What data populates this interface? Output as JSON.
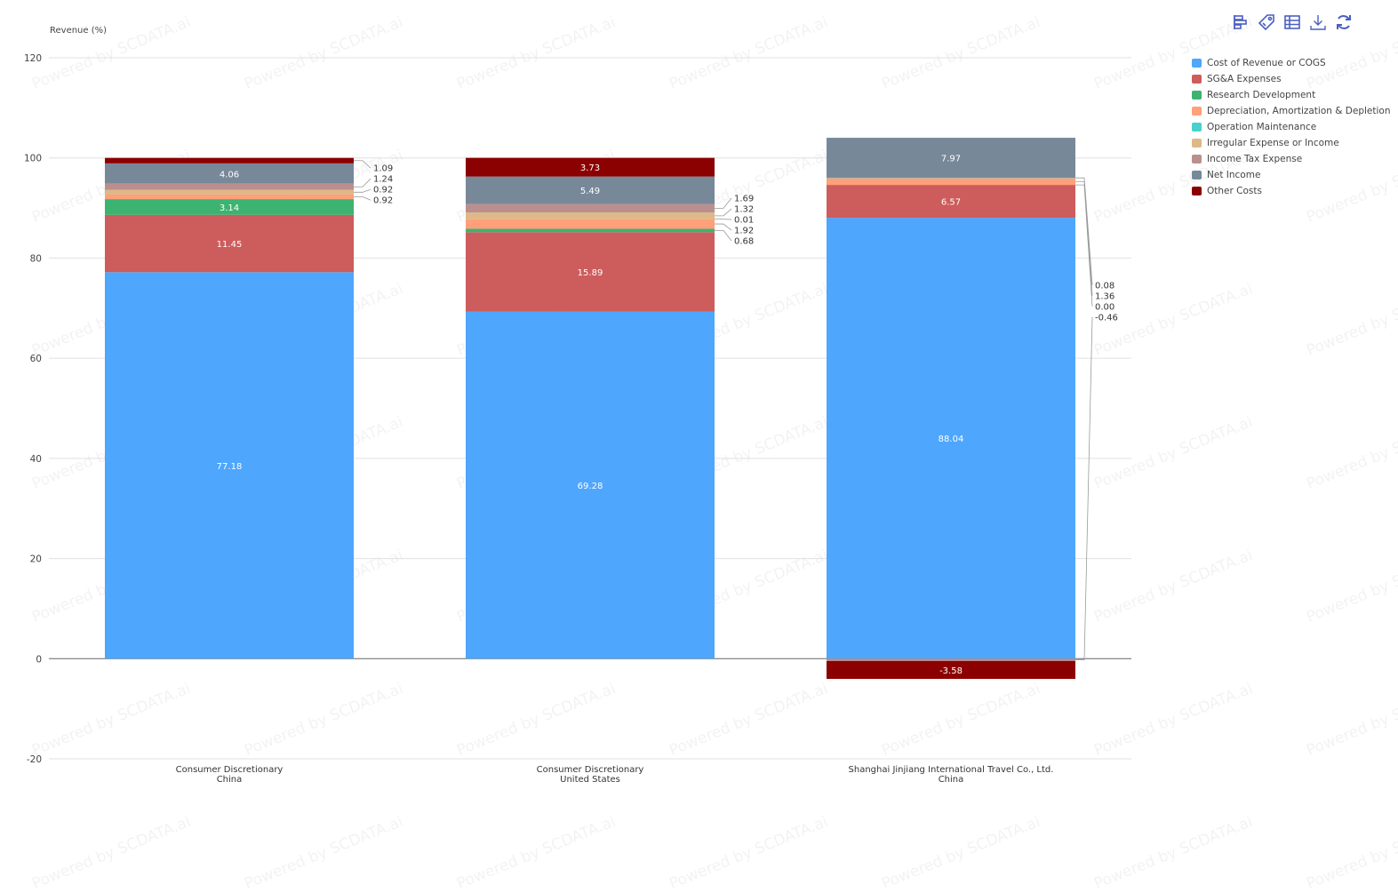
{
  "watermark": "Powered by SCDATA.ai",
  "toolbar": [
    {
      "icon": "bar-chart-icon"
    },
    {
      "icon": "tag-icon"
    },
    {
      "icon": "table-icon"
    },
    {
      "icon": "download-icon"
    },
    {
      "icon": "refresh-icon"
    }
  ],
  "chart_data": {
    "type": "bar",
    "stacked": true,
    "ylabel": "Revenue (%)",
    "ylim": [
      -20,
      120
    ],
    "yticks": [
      -20,
      0,
      20,
      40,
      60,
      80,
      100,
      120
    ],
    "grid": true,
    "legend_position": "top-right",
    "categories": [
      [
        "Consumer Discretionary",
        "China"
      ],
      [
        "Consumer Discretionary",
        "United States"
      ],
      [
        "Shanghai Jinjiang International Travel Co., Ltd.",
        "China"
      ]
    ],
    "series": [
      {
        "name": "Cost of Revenue or COGS",
        "color": "#4ea6fd",
        "values": [
          77.18,
          69.28,
          88.04
        ]
      },
      {
        "name": "SG&A Expenses",
        "color": "#cd5c5c",
        "values": [
          11.45,
          15.89,
          6.57
        ]
      },
      {
        "name": "Research Development",
        "color": "#3cb371",
        "values": [
          3.14,
          0.68,
          0.0
        ]
      },
      {
        "name": "Depreciation, Amortization & Depletion",
        "color": "#ffa07a",
        "values": [
          0.92,
          1.92,
          1.36
        ]
      },
      {
        "name": "Operation Maintenance",
        "color": "#48d1cc",
        "values": [
          null,
          0.01,
          0.08
        ]
      },
      {
        "name": "Irregular Expense or Income",
        "color": "#deb887",
        "values": [
          0.92,
          1.32,
          null
        ]
      },
      {
        "name": "Income Tax Expense",
        "color": "#bc8f8f",
        "values": [
          1.24,
          1.69,
          -0.46
        ]
      },
      {
        "name": "Net Income",
        "color": "#778899",
        "values": [
          4.06,
          5.49,
          7.97
        ]
      },
      {
        "name": "Other Costs",
        "color": "#8b0000",
        "values": [
          1.09,
          3.73,
          -3.58
        ]
      }
    ]
  }
}
